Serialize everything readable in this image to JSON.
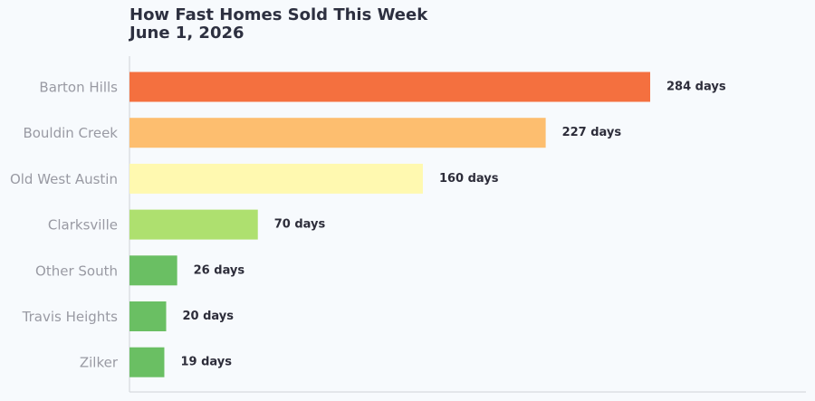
{
  "chart_data": {
    "type": "bar",
    "orientation": "horizontal",
    "title": "How Fast Homes Sold This Week",
    "subtitle": "June 1, 2026",
    "categories": [
      "Barton Hills",
      "Bouldin Creek",
      "Old West Austin",
      "Clarksville",
      "Other South",
      "Travis Heights",
      "Zilker"
    ],
    "values": [
      284,
      227,
      160,
      70,
      26,
      20,
      19
    ],
    "value_labels": [
      "284 days",
      "227 days",
      "160 days",
      "70 days",
      "26 days",
      "20 days",
      "19 days"
    ],
    "colors": [
      "#f4703f",
      "#fdbe6f",
      "#fff9b0",
      "#aee06f",
      "#6abf63",
      "#6abf63",
      "#6abf63"
    ]
  }
}
